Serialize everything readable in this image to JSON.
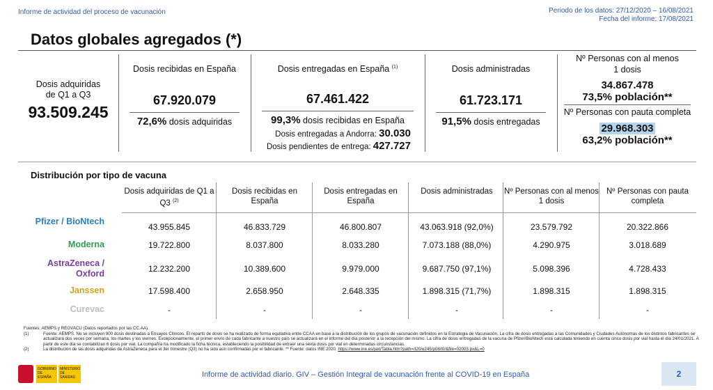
{
  "header": {
    "report_name": "Informe de actividad del proceso de vacunación",
    "period": "Periodo de los datos: 27/12/2020 – 16/08/2021",
    "report_date": "Fecha del informe: 17/08/2021"
  },
  "title": "Datos globales agregados (*)",
  "summary": {
    "acquired": {
      "label": "Dosis adquiridas de Q1 a Q3",
      "value": "93.509.245"
    },
    "received": {
      "label": "Dosis recibidas en España",
      "value": "67.920.079",
      "pct": "72,6%",
      "pct_label": "dosis adquiridas"
    },
    "delivered": {
      "label": "Dosis entregadas en España",
      "note": "(1)",
      "value": "67.461.422",
      "pct": "99,3%",
      "pct_label": "dosis recibidas en España",
      "andorra_label": "Dosis entregadas a Andorra:",
      "andorra_value": "30.030",
      "pending_label": "Dosis pendientes de entrega:",
      "pending_value": "427.727"
    },
    "administered": {
      "label": "Dosis administradas",
      "value": "61.723.171",
      "pct": "91,5%",
      "pct_label": "dosis entregadas"
    },
    "one_dose": {
      "label": "Nº Personas con al menos 1 dosis",
      "value": "34.867.478",
      "pct": "73,5% población**"
    },
    "complete": {
      "label": "Nº Personas con pauta completa",
      "value": "29.968.303",
      "pct": "63,2% población**"
    }
  },
  "table": {
    "title": "Distribución por tipo de vacuna",
    "headers": [
      {
        "text": "Dosis adquiridas de Q1 a Q3",
        "note": "(2)"
      },
      {
        "text": "Dosis recibidas en España"
      },
      {
        "text": "Dosis entregadas en España"
      },
      {
        "text": "Dosis administradas"
      },
      {
        "text": "Nº Personas con al menos 1 dosis"
      },
      {
        "text": "Nº Personas con pauta completa"
      }
    ],
    "rows": [
      {
        "name": "Pfizer / BioNtech",
        "color": "#2e7fc0",
        "cells": [
          "43.955.845",
          "46.833.729",
          "46.800.807",
          "43.063.918 (92,0%)",
          "23.579.792",
          "20.322.866"
        ]
      },
      {
        "name": "Moderna",
        "color": "#2f9e50",
        "cells": [
          "19.722.800",
          "8.037.800",
          "8.033.280",
          "7.073.188 (88,0%)",
          "4.290.975",
          "3.018.689"
        ]
      },
      {
        "name": "AstraZeneca / Oxford",
        "color": "#7a3d9c",
        "cells": [
          "12.232.200",
          "10.389.600",
          "9.979.000",
          "9.687.750 (97,1%)",
          "5.098.396",
          "4.728.433"
        ]
      },
      {
        "name": "Janssen",
        "color": "#d6a21c",
        "cells": [
          "17.598.400",
          "2.658.950",
          "2.648.335",
          "1.898.315 (71,7%)",
          "1.898.315",
          "1.898.315"
        ]
      },
      {
        "name": "Curevac",
        "color": "#bdbdbd",
        "cells": [
          "-",
          "-",
          "-",
          "-",
          "-",
          "-"
        ]
      }
    ]
  },
  "footnotes": {
    "sources": "Fuentes: AEMPS y REGVACU (Datos reportados por las CC.AA).",
    "note1_mark": "(1)",
    "note1": "Fuente: AEMPS. No se incluyen 900 dosis destinadas a Ensayos Clínicos. El reparto de dosis se ha realizado de forma equitativa entre CCAA en base a la distribución de los grupos de vacunación definidos en la Estrategia de Vacunación. La cifra de dosis entregadas a las Comunidades y Ciudades Autónomas de los distintos fabricantes se actualizará dos veces por semana, los martes y los viernes. Excepcionalmente, el primer envío de cada fabricante a nuestro país se actualizará en el informe del día posterior a la recepción del mismo. La cifra de dosis entregadas de la vacuna de Pfizer/BioNtech está calculada teniendo en cuenta cinco dosis por vial hasta el día 24/01/2021. A partir de este día se contabilizan 6 dosis por vial. La compañía ha modificado la ficha técnica, estableciendo la posibilidad de extraer una sexta dosis por vial en determinadas circunstancias.",
    "note2_mark": "(2)",
    "note2": "La distribución de las dosis adquiridas de AstraZeneca para el 3er trimestre (Q3) no ha sido aún confirmadas por el fabricante. ** Fuente: datos INE 2020:",
    "link": "https://www.ine.es/jaxi/Tabla.htm?path=/t20/e245/p08/l0/&file=02003.px&L=0"
  },
  "footer": {
    "logo_1": "GOBIERNO DE ESPAÑA",
    "logo_2": "MINISTERIO DE SANIDAD",
    "text": "Informe de actividad diario. GIV – Gestión Integral de vacunación frente al COVID-19 en España",
    "page": "2"
  }
}
